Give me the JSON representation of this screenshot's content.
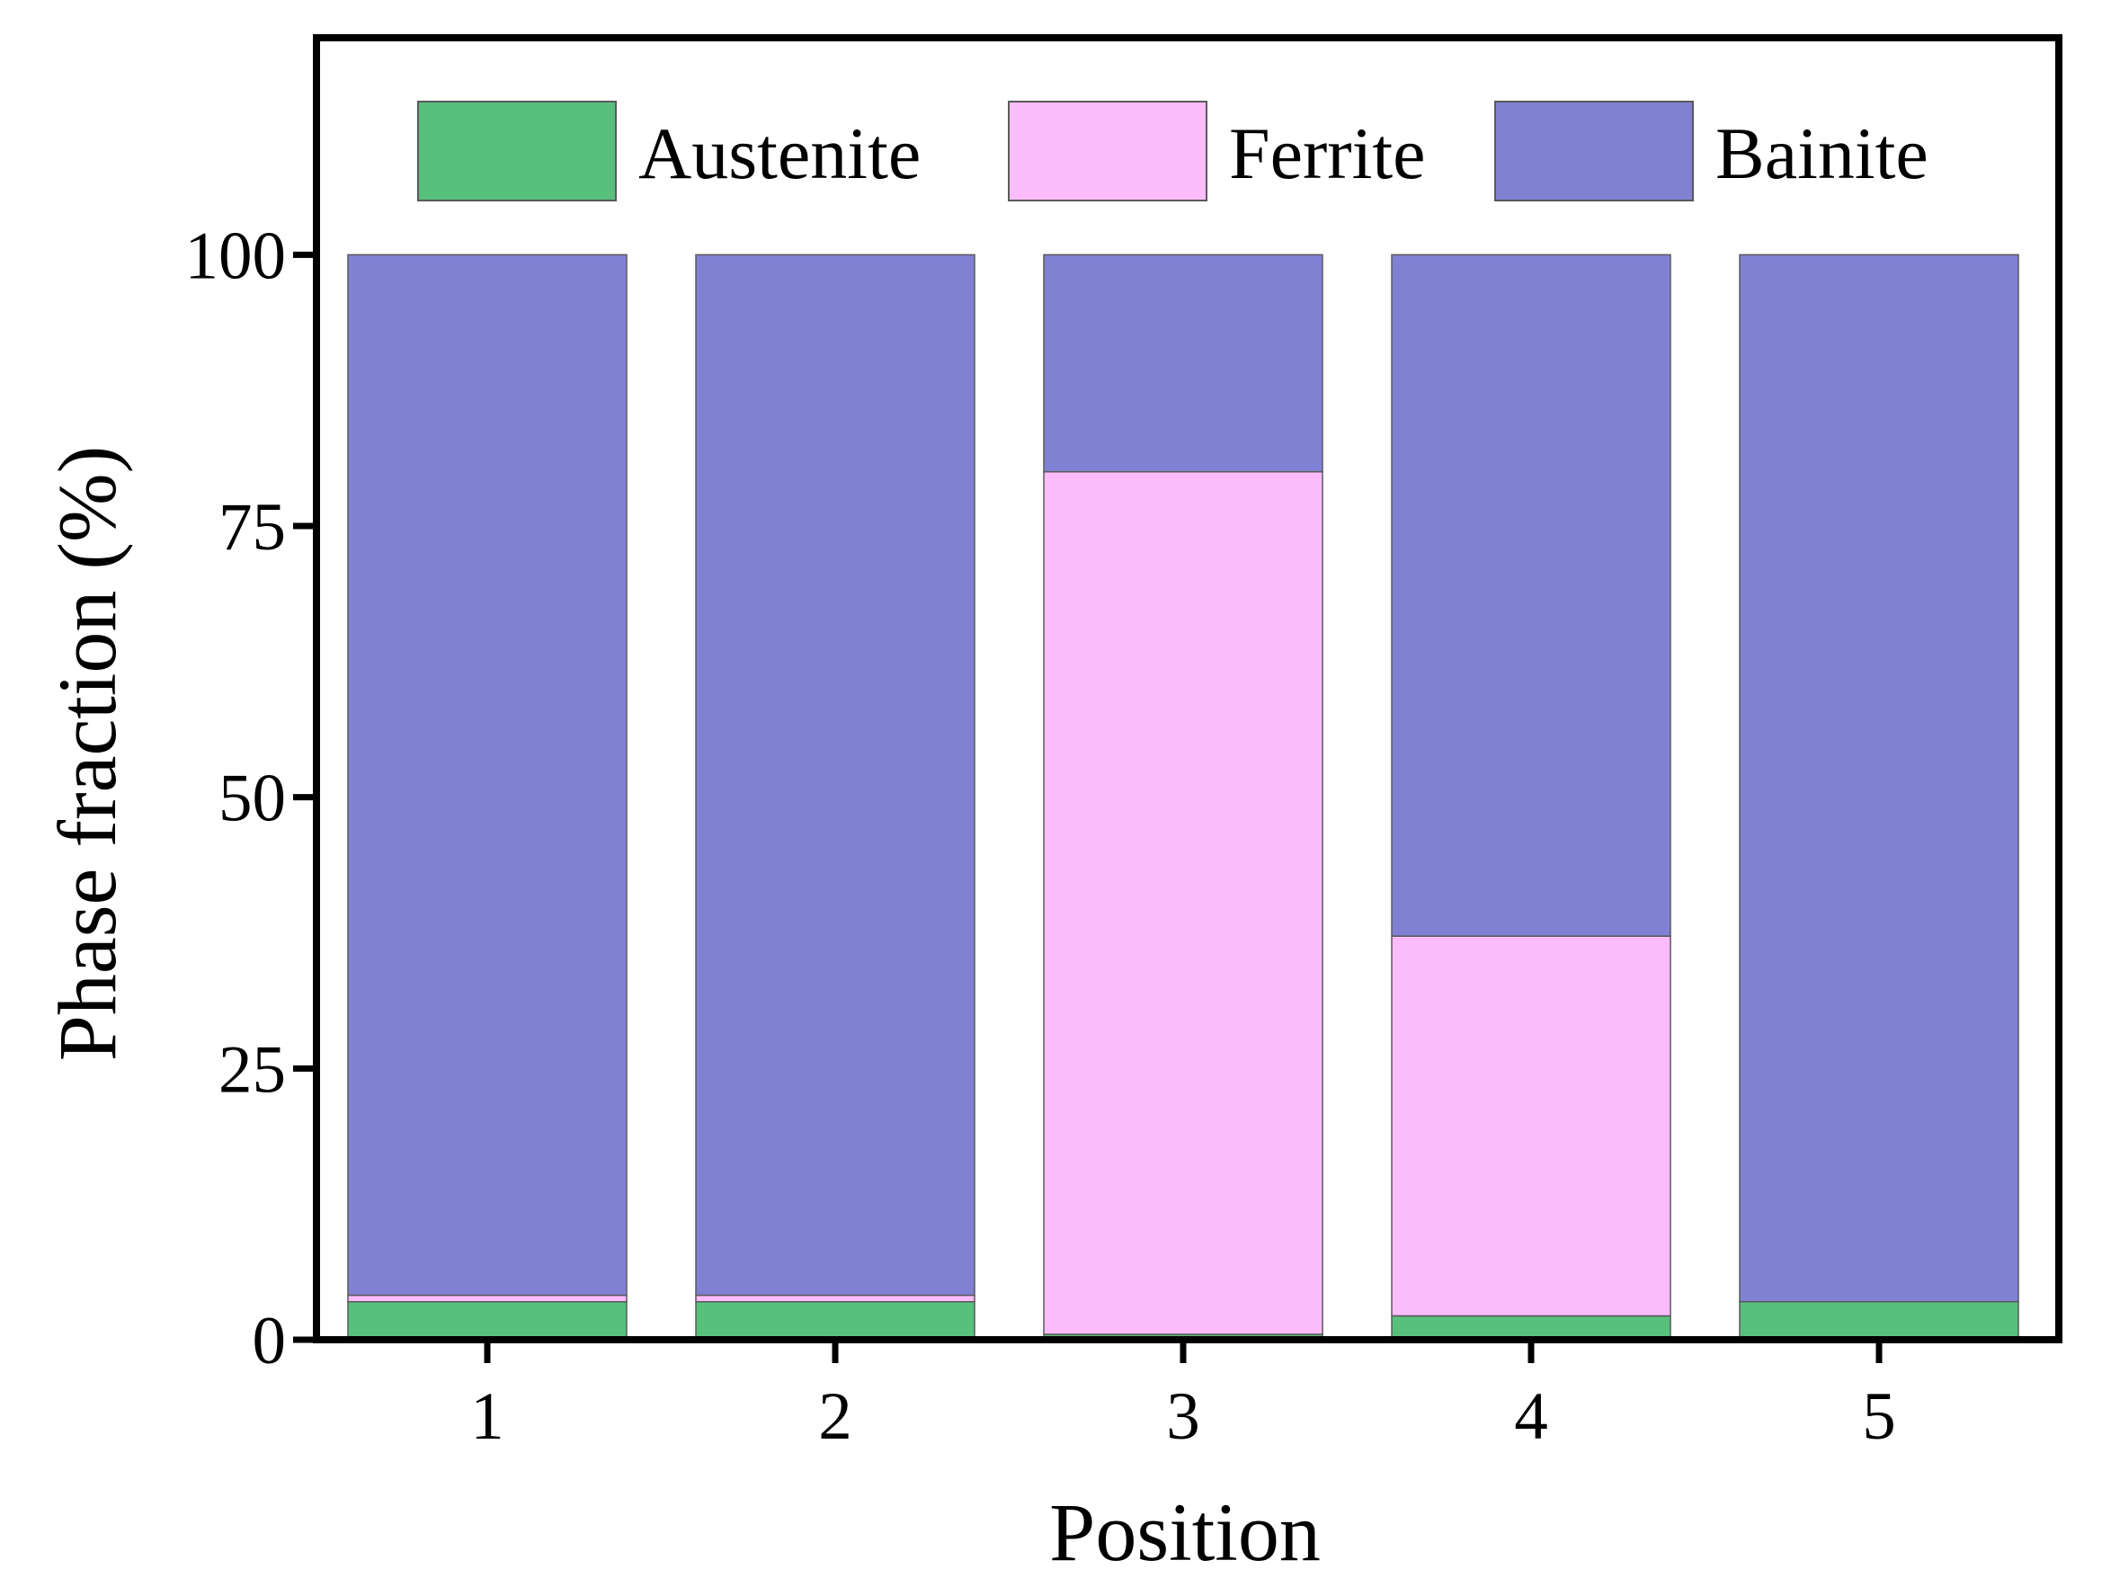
{
  "chart_data": {
    "type": "stacked-bar",
    "xlabel": "Position",
    "ylabel": "Phase fraction (%)",
    "categories": [
      "1",
      "2",
      "3",
      "4",
      "5"
    ],
    "ylim": [
      0,
      120
    ],
    "yticks": [
      0,
      25,
      50,
      75,
      100
    ],
    "legend_position": "top",
    "series": [
      {
        "name": "Austenite",
        "color": "#57C07D",
        "values": [
          3.5,
          3.5,
          0.5,
          2.2,
          3.5
        ]
      },
      {
        "name": "Ferrite",
        "color": "#FCBCFC",
        "values": [
          0.6,
          0.6,
          79.5,
          35.0,
          0.0
        ]
      },
      {
        "name": "Bainite",
        "color": "#8181D3",
        "values": [
          95.9,
          95.9,
          20.0,
          62.8,
          96.5
        ]
      }
    ]
  }
}
